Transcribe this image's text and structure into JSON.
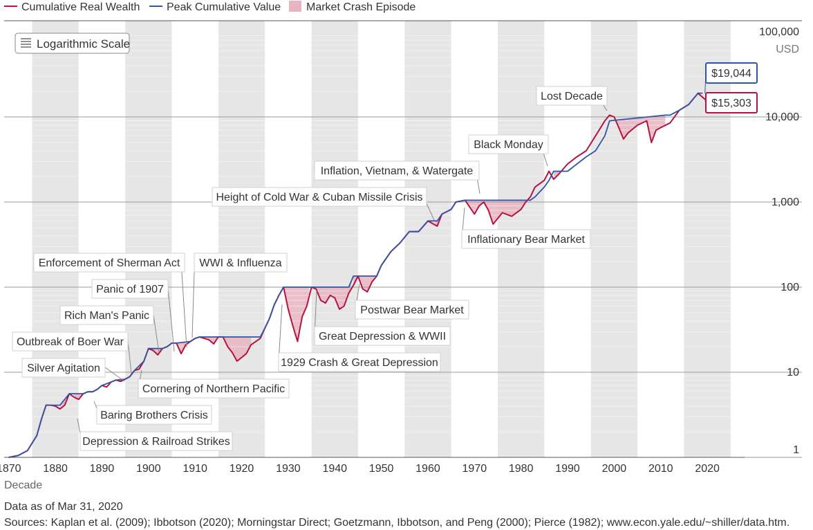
{
  "legend": {
    "cumulative_label": "Cumulative Real Wealth",
    "peak_label": "Peak Cumulative Value",
    "crash_label": "Market Crash Episode"
  },
  "controls": {
    "log_scale_label": "Logarithmic Scale"
  },
  "footer": {
    "date_note": "Data as of Mar 31, 2020",
    "sources": "Sources: Kaplan et al. (2009); Ibbotson (2020); Morningstar Direct; Goetzmann, Ibbotson, and Peng (2000); Pierce (1982); www.econ.yale.edu/~shiller/data.htm."
  },
  "colors": {
    "cumulative": "#b5123f",
    "peak": "#2f54a8",
    "crash_fill": "#e8b4c1",
    "decade_band": "#e6e6e6",
    "end_cumulative_box": "#b5123f",
    "end_peak_box": "#2f54a8"
  },
  "chart_data": {
    "type": "line",
    "title": "",
    "xlabel": "Decade",
    "ylabel": "",
    "y_unit": "USD",
    "y_scale": "log",
    "xlim": [
      1869,
      2028
    ],
    "ylim": [
      1,
      100000
    ],
    "x_ticks": [
      1870,
      1880,
      1890,
      1900,
      1910,
      1920,
      1930,
      1940,
      1950,
      1960,
      1970,
      1980,
      1990,
      2000,
      2010,
      2020
    ],
    "y_ticks": [
      {
        "value": 1,
        "label": "1"
      },
      {
        "value": 10,
        "label": "10"
      },
      {
        "value": 100,
        "label": "100"
      },
      {
        "value": 1000,
        "label": "1,000"
      },
      {
        "value": 10000,
        "label": "10,000"
      },
      {
        "value": 100000,
        "label": "100,000"
      }
    ],
    "grid": true,
    "legend_position": "top-left",
    "series": [
      {
        "name": "Cumulative Real Wealth",
        "x": [
          1870,
          1872,
          1874,
          1876,
          1877,
          1878,
          1879,
          1880,
          1881,
          1882,
          1883,
          1884,
          1885,
          1886,
          1887,
          1888,
          1889,
          1890,
          1891,
          1892,
          1893,
          1894,
          1895,
          1896,
          1897,
          1898,
          1899,
          1900,
          1901,
          1902,
          1903,
          1904,
          1905,
          1906,
          1907,
          1908,
          1909,
          1910,
          1911,
          1913,
          1914,
          1915,
          1916,
          1917,
          1918,
          1919,
          1921,
          1922,
          1924,
          1925,
          1926,
          1927,
          1928,
          1929,
          1930,
          1931,
          1932,
          1933,
          1934,
          1935,
          1936,
          1937,
          1938,
          1939,
          1940,
          1941,
          1942,
          1943,
          1944,
          1945,
          1946,
          1947,
          1948,
          1949,
          1950,
          1952,
          1954,
          1956,
          1958,
          1960,
          1962,
          1963,
          1965,
          1966,
          1968,
          1970,
          1971,
          1972,
          1973,
          1974,
          1976,
          1978,
          1980,
          1981,
          1982,
          1983,
          1985,
          1986,
          1987,
          1988,
          1990,
          1992,
          1994,
          1996,
          1998,
          1999,
          2000,
          2001,
          2002,
          2003,
          2005,
          2007,
          2008,
          2009,
          2010,
          2012,
          2014,
          2016,
          2018,
          2019,
          2020
        ],
        "values": [
          1.0,
          1.05,
          1.2,
          1.8,
          2.8,
          4.1,
          4.1,
          4.0,
          3.7,
          4.1,
          5.6,
          5.1,
          4.8,
          5.6,
          5.9,
          5.9,
          6.3,
          7.0,
          6.7,
          7.7,
          8.1,
          7.8,
          8.3,
          8.9,
          10.5,
          10.9,
          13.5,
          19.0,
          18.0,
          16.0,
          19.0,
          20.0,
          22.0,
          22.0,
          16.5,
          21.0,
          23.0,
          25.0,
          26.0,
          24.0,
          21.5,
          26.0,
          26.0,
          20.0,
          17.0,
          13.5,
          16.5,
          21.0,
          25.0,
          33.0,
          43.0,
          62.0,
          80.0,
          100.0,
          55.0,
          35.0,
          23.0,
          45.0,
          60.0,
          100.0,
          95.0,
          70.0,
          65.0,
          80.0,
          75.0,
          55.0,
          60.0,
          85.0,
          105.0,
          135.0,
          95.0,
          88.0,
          115.0,
          135.0,
          180.0,
          260.0,
          330.0,
          450.0,
          450.0,
          600.0,
          520.0,
          720.0,
          820.0,
          1000.0,
          1050.0,
          720.0,
          900.0,
          1000.0,
          800.0,
          550.0,
          750.0,
          680.0,
          820.0,
          1000.0,
          1150.0,
          1500.0,
          1800.0,
          2300.0,
          1850.0,
          2100.0,
          2800.0,
          3400.0,
          4000.0,
          6000.0,
          9000.0,
          10500.0,
          10000.0,
          7500.0,
          5500.0,
          6500.0,
          8000.0,
          9000.0,
          5000.0,
          7000.0,
          7500.0,
          8500.0,
          12000.0,
          14000.0,
          19000.0,
          17000.0,
          15303.0
        ]
      },
      {
        "name": "Peak Cumulative Value",
        "x": [
          1870,
          1872,
          1874,
          1876,
          1877,
          1878,
          1881,
          1883,
          1886,
          1887,
          1888,
          1889,
          1890,
          1892,
          1893,
          1895,
          1896,
          1897,
          1899,
          1900,
          1902,
          1903,
          1904,
          1905,
          1906,
          1909,
          1910,
          1911,
          1920,
          1921,
          1922,
          1924,
          1925,
          1926,
          1927,
          1928,
          1929,
          1935,
          1936,
          1942,
          1943,
          1944,
          1946,
          1948,
          1949,
          1950,
          1952,
          1954,
          1956,
          1958,
          1960,
          1962,
          1963,
          1965,
          1966,
          1968,
          1980,
          1981,
          1982,
          1983,
          1985,
          1986,
          1987,
          1988,
          1990,
          1992,
          1994,
          1996,
          1998,
          1999,
          2011,
          2012,
          2014,
          2016,
          2018,
          2019
        ],
        "values": [
          1.0,
          1.05,
          1.2,
          1.8,
          2.8,
          4.1,
          4.1,
          5.6,
          5.6,
          5.9,
          5.9,
          6.3,
          7.0,
          7.7,
          8.1,
          8.3,
          8.9,
          10.5,
          13.5,
          19.0,
          19.0,
          19.0,
          20.0,
          22.0,
          22.0,
          23.0,
          25.0,
          26.0,
          26.0,
          26.0,
          26.0,
          26.0,
          33.0,
          43.0,
          62.0,
          80.0,
          100.0,
          100.0,
          100.0,
          100.0,
          100.0,
          135.0,
          135.0,
          135.0,
          135.0,
          180.0,
          260.0,
          330.0,
          450.0,
          450.0,
          600.0,
          600.0,
          720.0,
          820.0,
          1000.0,
          1050.0,
          1050.0,
          1050.0,
          1050.0,
          1150.0,
          1500.0,
          1800.0,
          2300.0,
          2300.0,
          2300.0,
          2800.0,
          3400.0,
          4000.0,
          6000.0,
          9000.0,
          10500.0,
          10500.0,
          12000.0,
          14000.0,
          19000.0,
          19044.0
        ]
      }
    ],
    "end_labels": {
      "peak": "$19,044",
      "cumulative": "$15,303"
    },
    "crash_episodes": [
      {
        "label": "Depression & Railroad Strikes",
        "start": 1881.0,
        "end": 1883.0
      },
      {
        "label": "Baring Brothers Crisis",
        "start": 1884.0,
        "end": 1886.0
      },
      {
        "label": "Silver Agitation",
        "start": 1893.0,
        "end": 1895.0
      },
      {
        "label": "Outbreak of Boer War",
        "start": 1896.0,
        "end": 1897.0
      },
      {
        "label": "Cornering of Northern Pacific",
        "start": 1897.5,
        "end": 1899.0
      },
      {
        "label": "Rich Man's Panic",
        "start": 1900.5,
        "end": 1904.0
      },
      {
        "label": "Panic of 1907",
        "start": 1905.5,
        "end": 1908.0
      },
      {
        "label": "Enforcement of Sherman Act",
        "start": 1909.5,
        "end": 1911.0
      },
      {
        "label": "WWI & Influenza",
        "start": 1911.0,
        "end": 1922.0
      },
      {
        "label": "1929 Crash & Great Depression",
        "start": 1929.0,
        "end": 1934.5
      },
      {
        "label": "Great Depression & WWII",
        "start": 1935.0,
        "end": 1943.5
      },
      {
        "label": "Postwar Bear Market",
        "start": 1944.0,
        "end": 1948.5
      },
      {
        "label": "Height of Cold War & Cuban Missile Crisis",
        "start": 1961.5,
        "end": 1963.0
      },
      {
        "label": "Inflationary Bear Market",
        "start": 1966.0,
        "end": 1982.5
      },
      {
        "label": "Inflation, Vietnam, & Watergate",
        "start": 1966.0,
        "end": 1982.5
      },
      {
        "label": "Black Monday",
        "start": 1987.0,
        "end": 1988.5
      },
      {
        "label": "Lost Decade",
        "start": 1999.0,
        "end": 2011.0
      }
    ]
  }
}
